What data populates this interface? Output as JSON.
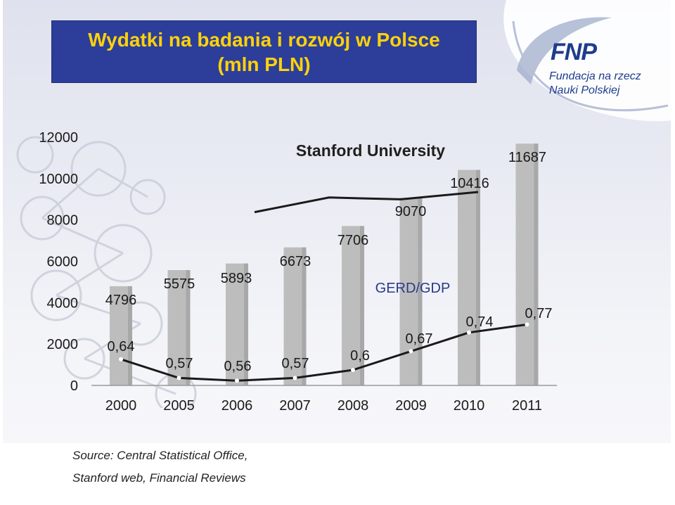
{
  "title": {
    "line1": "Wydatki na badania i rozwój w Polsce",
    "line2": "(mln PLN)"
  },
  "logo": {
    "name": "FNP",
    "line1": "Fundacja na rzecz",
    "line2": "Nauki Polskiej"
  },
  "watermark": "Stanford University",
  "source": {
    "line1": "Source: Central Statistical Office,",
    "line2": "Stanford web, Financial Reviews"
  },
  "colors": {
    "title_bg": "#2c3e9a",
    "title_text": "#ffd20a",
    "bars": "#bdbdbd",
    "line": "#1a1a1a",
    "logo": "#1e3c8c"
  },
  "chart_data": {
    "type": "bar",
    "categories": [
      "2000",
      "2005",
      "2006",
      "2007",
      "2008",
      "2009",
      "2010",
      "2011"
    ],
    "values": [
      4796,
      5575,
      5893,
      6673,
      7706,
      9070,
      10416,
      11687
    ],
    "value_labels": [
      "4796",
      "5575",
      "5893",
      "6673",
      "7706",
      "9070",
      "10416",
      "11687"
    ],
    "ylim": [
      0,
      12000
    ],
    "yticks": [
      "0",
      "2000",
      "4000",
      "6000",
      "8000",
      "10000",
      "12000"
    ],
    "series": [
      {
        "name": "GERD/GDP",
        "type": "line",
        "values": [
          0.64,
          0.57,
          0.56,
          0.57,
          0.6,
          0.67,
          0.74,
          0.77
        ],
        "value_labels": [
          "0,64",
          "0,57",
          "0,56",
          "0,57",
          "0,6",
          "0,67",
          "0,74",
          "0,77"
        ]
      },
      {
        "type": "line",
        "note_label": "Stanford University",
        "values_relative": [
          0.84,
          0.92,
          0.91,
          0.95
        ]
      }
    ],
    "grid": false,
    "legend": "none"
  }
}
